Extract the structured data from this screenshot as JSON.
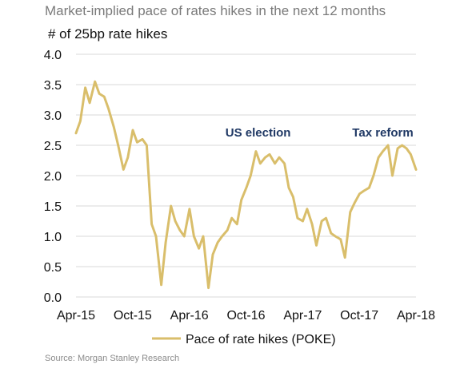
{
  "colors": {
    "series": "#D9BE6B",
    "grid": "#d9d9d9",
    "annotation": "#1f3864"
  },
  "chart_data": {
    "type": "line",
    "title": "Market-implied pace of rates hikes in the next 12 months",
    "ylabel": "# of 25bp rate hikes",
    "ylim": [
      0,
      4
    ],
    "yticks": [
      "0.0",
      "0.5",
      "1.0",
      "1.5",
      "2.0",
      "2.5",
      "3.0",
      "3.5",
      "4.0"
    ],
    "xticks": [
      "Apr-15",
      "Oct-15",
      "Apr-16",
      "Oct-16",
      "Apr-17",
      "Oct-17",
      "Apr-18"
    ],
    "xlim": [
      "2015-04-01",
      "2018-04-01"
    ],
    "grid": "horizontal",
    "legend": "bottom",
    "annotations": [
      {
        "text": "US election",
        "x": "2016-11-08",
        "y": 2.7
      },
      {
        "text": "Tax reform",
        "x": "2017-12-15",
        "y": 2.7
      }
    ],
    "series": [
      {
        "name": "Pace of rate hikes (POKE)",
        "x": [
          "2015-04-01",
          "2015-04-15",
          "2015-05-01",
          "2015-05-15",
          "2015-06-01",
          "2015-06-15",
          "2015-07-01",
          "2015-07-15",
          "2015-08-01",
          "2015-08-15",
          "2015-09-01",
          "2015-09-15",
          "2015-10-01",
          "2015-10-15",
          "2015-11-01",
          "2015-11-15",
          "2015-12-01",
          "2015-12-15",
          "2016-01-01",
          "2016-01-15",
          "2016-02-01",
          "2016-02-15",
          "2016-03-01",
          "2016-03-15",
          "2016-04-01",
          "2016-04-15",
          "2016-05-01",
          "2016-05-15",
          "2016-06-01",
          "2016-06-15",
          "2016-07-01",
          "2016-07-15",
          "2016-08-01",
          "2016-08-15",
          "2016-09-01",
          "2016-09-15",
          "2016-10-01",
          "2016-10-15",
          "2016-11-01",
          "2016-11-15",
          "2016-12-01",
          "2016-12-15",
          "2017-01-01",
          "2017-01-15",
          "2017-02-01",
          "2017-02-15",
          "2017-03-01",
          "2017-03-15",
          "2017-04-01",
          "2017-04-15",
          "2017-05-01",
          "2017-05-15",
          "2017-06-01",
          "2017-06-15",
          "2017-07-01",
          "2017-07-15",
          "2017-08-01",
          "2017-08-15",
          "2017-09-01",
          "2017-09-15",
          "2017-10-01",
          "2017-10-15",
          "2017-11-01",
          "2017-11-15",
          "2017-12-01",
          "2017-12-15",
          "2018-01-01",
          "2018-01-15",
          "2018-02-01",
          "2018-02-15",
          "2018-03-01",
          "2018-03-15",
          "2018-04-01"
        ],
        "values": [
          2.7,
          2.9,
          3.45,
          3.2,
          3.55,
          3.35,
          3.3,
          3.1,
          2.8,
          2.5,
          2.1,
          2.3,
          2.75,
          2.55,
          2.6,
          2.5,
          1.2,
          1.0,
          0.2,
          0.9,
          1.5,
          1.25,
          1.1,
          1.0,
          1.45,
          1.0,
          0.8,
          1.0,
          0.15,
          0.7,
          0.9,
          1.0,
          1.1,
          1.3,
          1.2,
          1.6,
          1.8,
          2.0,
          2.4,
          2.2,
          2.3,
          2.35,
          2.2,
          2.3,
          2.2,
          1.8,
          1.65,
          1.3,
          1.25,
          1.45,
          1.2,
          0.85,
          1.25,
          1.3,
          1.05,
          1.0,
          0.95,
          0.65,
          1.4,
          1.55,
          1.7,
          1.75,
          1.8,
          2.0,
          2.3,
          2.4,
          2.5,
          2.0,
          2.45,
          2.5,
          2.45,
          2.35,
          2.1
        ]
      }
    ]
  },
  "source": "Source: Morgan Stanley Research"
}
